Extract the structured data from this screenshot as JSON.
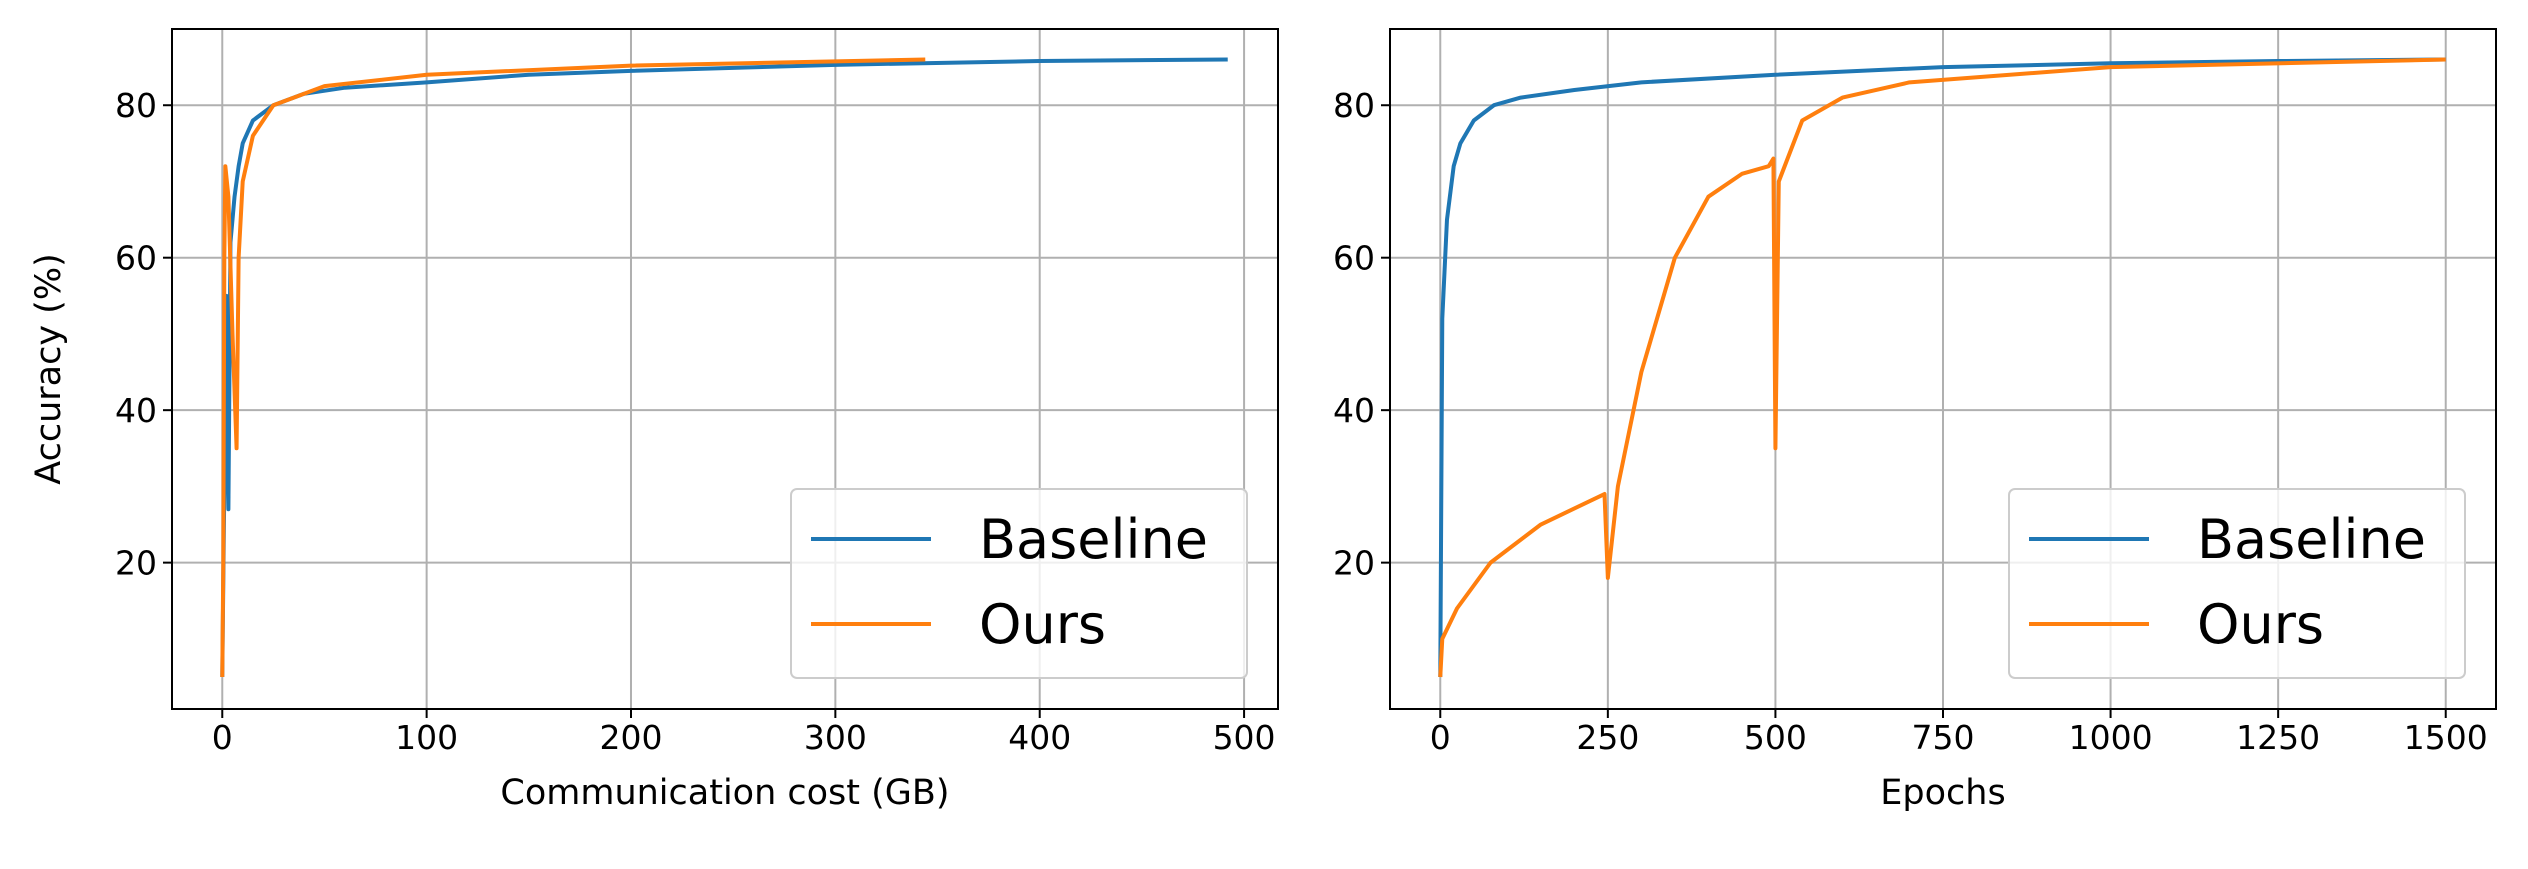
{
  "chart_data": [
    {
      "type": "line",
      "x_label": "Communication cost (GB)",
      "y_label": "Accuracy (%)",
      "xlim": [
        -24.6,
        516.6
      ],
      "ylim": [
        0.8,
        90
      ],
      "xticks": [
        0,
        100,
        200,
        300,
        400,
        500
      ],
      "yticks": [
        20,
        40,
        60,
        80
      ],
      "grid": true,
      "legend": "lower right",
      "series": [
        {
          "name": "Baseline",
          "color": "#1f77b4",
          "x": [
            0,
            1,
            2,
            3,
            4,
            6,
            8,
            10,
            15,
            25,
            40,
            60,
            100,
            150,
            200,
            300,
            400,
            492
          ],
          "values": [
            5,
            30,
            55,
            27,
            62,
            68,
            72,
            75,
            78,
            80,
            81.5,
            82.3,
            83,
            84,
            84.5,
            85.3,
            85.8,
            86
          ]
        },
        {
          "name": "Ours",
          "color": "#ff7f0e",
          "x": [
            0,
            0.5,
            1,
            1.5,
            3,
            5,
            7,
            8,
            10,
            15,
            25,
            50,
            100,
            200,
            344
          ],
          "values": [
            5,
            20,
            60,
            72,
            68,
            50,
            35,
            60,
            70,
            76,
            80,
            82.5,
            84,
            85.2,
            86
          ]
        }
      ]
    },
    {
      "type": "line",
      "x_label": "Epochs",
      "xlim": [
        -75,
        1575
      ],
      "ylim": [
        0.8,
        90
      ],
      "xticks": [
        0,
        250,
        500,
        750,
        1000,
        1250,
        1500
      ],
      "yticks": [
        20,
        40,
        60,
        80
      ],
      "grid": true,
      "legend": "lower right",
      "series": [
        {
          "name": "Baseline",
          "color": "#1f77b4",
          "x": [
            0,
            3,
            10,
            20,
            30,
            50,
            80,
            120,
            200,
            300,
            500,
            750,
            1000,
            1250,
            1500
          ],
          "values": [
            5,
            52,
            65,
            72,
            75,
            78,
            80,
            81,
            82,
            83,
            84,
            85,
            85.5,
            85.8,
            86
          ]
        },
        {
          "name": "Ours",
          "color": "#ff7f0e",
          "x": [
            0,
            3,
            25,
            75,
            150,
            245,
            250,
            265,
            300,
            350,
            400,
            450,
            490,
            497,
            500,
            505,
            540,
            600,
            700,
            1000,
            1500
          ],
          "values": [
            5,
            10,
            14,
            20,
            25,
            29,
            18,
            30,
            45,
            60,
            68,
            71,
            72,
            73,
            35,
            70,
            78,
            81,
            83,
            85,
            86
          ]
        }
      ]
    }
  ]
}
